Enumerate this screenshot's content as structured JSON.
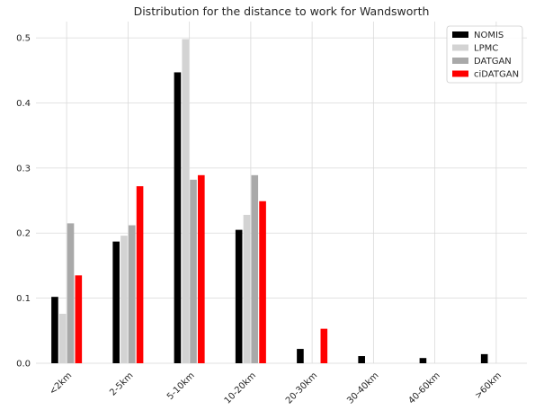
{
  "chart_data": {
    "type": "bar",
    "title": "Distribution for the distance to work for Wandsworth",
    "xlabel": "",
    "ylabel": "",
    "categories": [
      "<2km",
      "2-5km",
      "5-10km",
      "10-20km",
      "20-30km",
      "30-40km",
      "40-60km",
      ">60km"
    ],
    "series": [
      {
        "name": "NOMIS",
        "color": "#000000",
        "values": [
          0.102,
          0.187,
          0.447,
          0.205,
          0.022,
          0.011,
          0.008,
          0.014
        ]
      },
      {
        "name": "LPMC",
        "color": "#d3d3d3",
        "values": [
          0.076,
          0.196,
          0.498,
          0.228,
          0,
          0,
          0,
          0
        ]
      },
      {
        "name": "DATGAN",
        "color": "#a9a9a9",
        "values": [
          0.215,
          0.212,
          0.282,
          0.289,
          0,
          0,
          0,
          0
        ]
      },
      {
        "name": "ciDATGAN",
        "color": "#ff0000",
        "values": [
          0.135,
          0.272,
          0.289,
          0.249,
          0.053,
          0,
          0,
          0
        ]
      }
    ],
    "ylim": [
      0,
      0.525
    ],
    "yticks": [
      "0.0",
      "0.1",
      "0.2",
      "0.3",
      "0.4",
      "0.5"
    ],
    "ytick_values": [
      0,
      0.1,
      0.2,
      0.3,
      0.4,
      0.5
    ],
    "grid": true,
    "legend_position": "top-right",
    "xtick_rotation_deg": 45
  }
}
